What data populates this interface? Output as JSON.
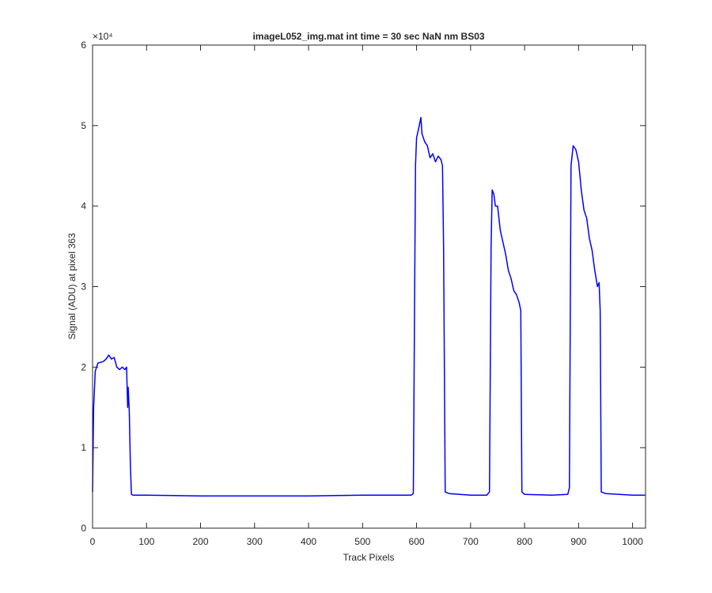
{
  "chart_data": {
    "type": "line",
    "title": "imageL052_img.mat int time = 30 sec  NaN nm BS03",
    "xlabel": "Track Pixels",
    "ylabel": "Signal (ADU) at pixel 363",
    "y_exponent_label": "×10⁴",
    "x": [
      0,
      2,
      5,
      10,
      20,
      25,
      30,
      35,
      40,
      45,
      50,
      55,
      60,
      63,
      65,
      66,
      68,
      70,
      72,
      75,
      100,
      200,
      300,
      400,
      500,
      590,
      594,
      596,
      598,
      600,
      605,
      608,
      610,
      615,
      620,
      625,
      630,
      635,
      640,
      645,
      648,
      650,
      653,
      660,
      700,
      730,
      735,
      738,
      740,
      743,
      746,
      750,
      755,
      760,
      765,
      770,
      775,
      780,
      785,
      790,
      793,
      795,
      800,
      850,
      880,
      883,
      886,
      890,
      895,
      900,
      905,
      910,
      915,
      920,
      925,
      930,
      935,
      938,
      940,
      942,
      950,
      1000,
      1023
    ],
    "series": [
      {
        "name": "Signal",
        "color": "#0000ff",
        "values": [
          0.45,
          1.5,
          1.95,
          2.05,
          2.07,
          2.1,
          2.15,
          2.1,
          2.12,
          2.0,
          1.97,
          2.0,
          1.97,
          2.0,
          1.5,
          1.75,
          1.45,
          0.8,
          0.42,
          0.41,
          0.41,
          0.4,
          0.4,
          0.4,
          0.41,
          0.41,
          0.43,
          2.5,
          4.5,
          4.85,
          5.0,
          5.1,
          4.9,
          4.8,
          4.75,
          4.6,
          4.65,
          4.55,
          4.62,
          4.58,
          4.5,
          3.5,
          0.45,
          0.43,
          0.41,
          0.41,
          0.45,
          3.5,
          4.2,
          4.15,
          4.0,
          4.0,
          3.7,
          3.55,
          3.4,
          3.2,
          3.1,
          2.95,
          2.9,
          2.8,
          2.7,
          0.45,
          0.42,
          0.41,
          0.42,
          0.5,
          4.5,
          4.75,
          4.7,
          4.55,
          4.2,
          3.95,
          3.85,
          3.6,
          3.45,
          3.2,
          3.0,
          3.05,
          2.7,
          0.45,
          0.43,
          0.41,
          0.41
        ]
      }
    ],
    "xlim": [
      0,
      1024
    ],
    "xticks": [
      0,
      100,
      200,
      300,
      400,
      500,
      600,
      700,
      800,
      900,
      1000
    ],
    "ylim": [
      0,
      6
    ],
    "yticks": [
      0,
      1,
      2,
      3,
      4,
      5,
      6
    ],
    "grid": false
  }
}
